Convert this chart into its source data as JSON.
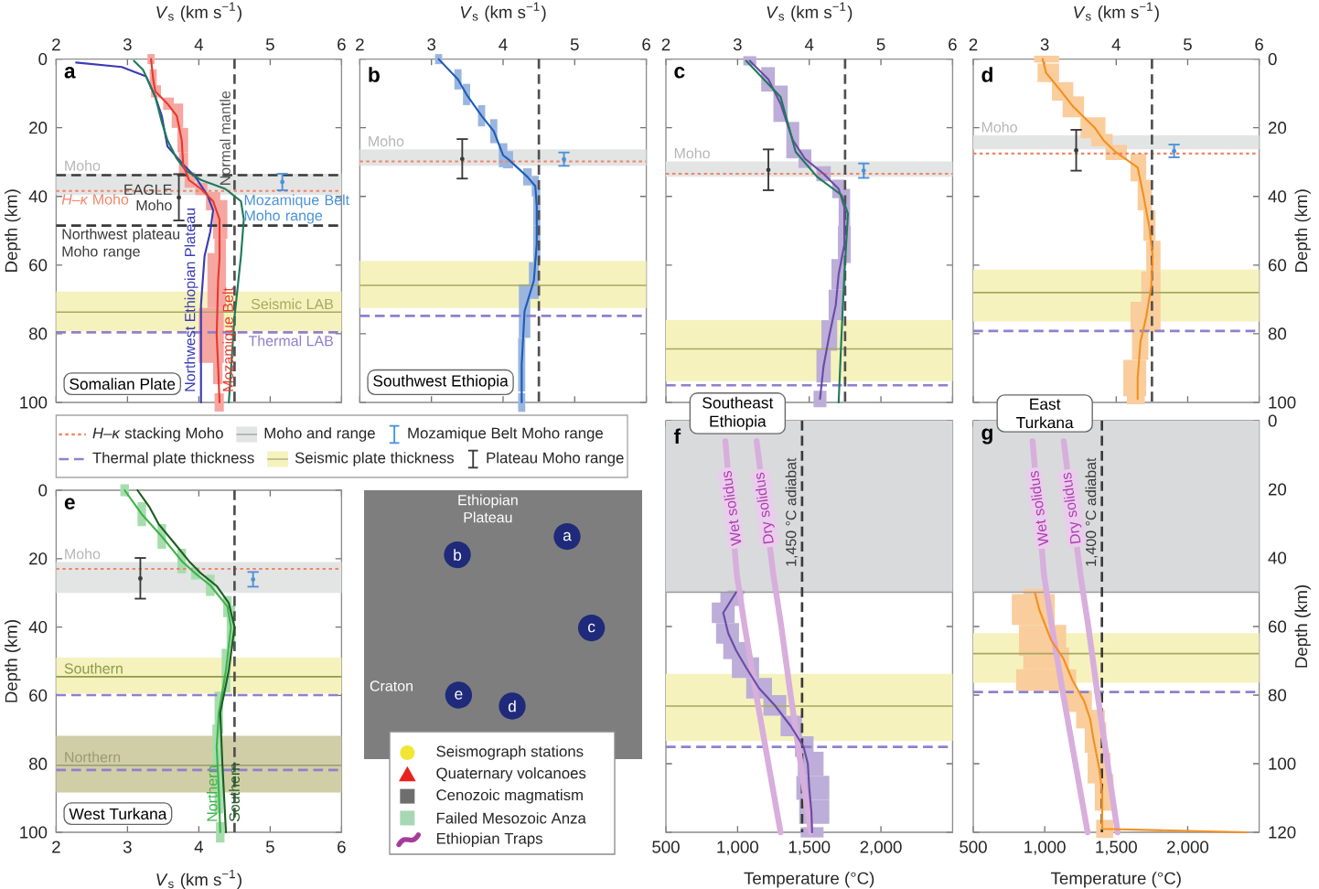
{
  "chart_data": [
    {
      "type": "line",
      "title": "a",
      "subtitle": "Somalian Plate",
      "xlabel": "*V*$_{s}$ (km s$^{−1}$)",
      "ylabel": "Depth (km)",
      "xlim": [
        2,
        6
      ],
      "ylim": [
        100,
        0
      ],
      "xticks": [
        2,
        3,
        4,
        5,
        6
      ],
      "yticks": [
        0,
        20,
        40,
        60,
        80,
        100
      ],
      "marker": "none",
      "bands": [
        {
          "axis": "y",
          "from": 33.4,
          "to": 39.6,
          "color": "#e3e4e4",
          "label": "Moho"
        },
        {
          "axis": "y",
          "from": 67.7,
          "to": 79.2,
          "color": "#f5f2bd"
        }
      ],
      "ref_lines": [
        {
          "axis": "y",
          "value": 38.4,
          "color": "#f28466",
          "line_style": "dotted",
          "label": "*H*–*κ* Moho"
        },
        {
          "axis": "y",
          "value": 33.8,
          "color": "#3a3a3a",
          "line_style": "dashed"
        },
        {
          "axis": "y",
          "value": 48.5,
          "color": "#3a3a3a",
          "line_style": "dashed",
          "label": "Northwest plateau Moho range"
        },
        {
          "axis": "y",
          "value": 73.7,
          "color": "#a9a762",
          "line_style": "solid",
          "label": "Seismic LAB"
        },
        {
          "axis": "y",
          "value": 79.6,
          "color": "#9080cc",
          "line_style": "dashed",
          "label": "Thermal LAB"
        },
        {
          "axis": "x",
          "value": 4.5,
          "color": "#505050",
          "line_style": "dashed",
          "label": "Normal mantle"
        }
      ],
      "annotations": [
        {
          "text": "EAGLE Moho",
          "x": 3.72,
          "y": 40.3
        },
        {
          "text": "Mozamique Belt Moho range",
          "x": 5.17,
          "y": 38.2
        }
      ],
      "series": [
        {
          "name": "Northwest Ethiopian Plateau",
          "color": "#3b3bb5",
          "x": [
            2.28,
            2.92,
            3.26,
            3.39,
            3.48,
            3.56,
            3.78,
            3.95,
            4.12,
            4.2,
            4.16,
            4.08,
            4.03,
            4.03
          ],
          "values": [
            1,
            2.3,
            5,
            11,
            16.5,
            25.4,
            30.7,
            34.3,
            39.6,
            44,
            50.3,
            57.4,
            71.6,
            100
          ]
        },
        {
          "color": "#1f7a5a",
          "x": [
            3.09,
            3.22,
            3.39,
            3.48,
            3.56,
            3.69,
            3.82,
            4.03,
            4.37,
            4.59,
            4.63,
            4.59,
            4.5,
            4.42
          ],
          "values": [
            0.5,
            3.2,
            11,
            18.3,
            23.6,
            29,
            32.5,
            35.2,
            37.8,
            41.4,
            46.7,
            57.4,
            75.1,
            100
          ]
        },
        {
          "name": "Mozamique Belt",
          "color": "#e8392e",
          "x": [
            3.33,
            3.36,
            3.39,
            3.56,
            3.69,
            3.76,
            3.78,
            3.86,
            4.03,
            4.2,
            4.29,
            4.29,
            4.27,
            4.25,
            4.27,
            4.29
          ],
          "values": [
            0,
            5.9,
            9.4,
            13,
            16.5,
            23.6,
            30.7,
            35.2,
            37.8,
            41.4,
            46.7,
            58,
            64.5,
            80.5,
            89.4,
            100
          ],
          "xerrors": [
            [
              3.28,
              3.38
            ],
            [
              3.31,
              3.41
            ],
            [
              3.33,
              3.47
            ],
            [
              3.5,
              3.65
            ],
            [
              3.62,
              3.78
            ],
            [
              3.7,
              3.85
            ],
            [
              3.72,
              3.85
            ],
            [
              3.8,
              3.95
            ],
            [
              3.95,
              4.12
            ],
            [
              4.1,
              4.3
            ],
            [
              4.2,
              4.4
            ],
            [
              4.22,
              4.38
            ],
            [
              4.12,
              4.38
            ],
            [
              4.0,
              4.35
            ],
            [
              4.2,
              4.33
            ],
            [
              4.22,
              4.35
            ]
          ]
        },
        {
          "type": "scatter",
          "marker": "circle",
          "color": "#3a3a3a",
          "x": [
            3.72
          ],
          "values": [
            40.3
          ],
          "errors": [
            [
              33.5,
              47
            ]
          ]
        },
        {
          "type": "scatter",
          "marker": "circle",
          "color": "#4a92d8",
          "x": [
            5.17
          ],
          "values": [
            35.8
          ],
          "errors": [
            [
              33.4,
              38.2
            ]
          ]
        }
      ]
    },
    {
      "type": "line",
      "title": "b",
      "subtitle": "Southwest Ethiopia",
      "xlabel": "*V*$_{s}$ (km s$^{−1}$)",
      "xlim": [
        2,
        6
      ],
      "ylim": [
        100,
        0
      ],
      "xticks": [
        2,
        3,
        4,
        5,
        6
      ],
      "yticks": [
        0,
        20,
        40,
        60,
        80,
        100
      ],
      "tick_labels": "x",
      "marker": "none",
      "bands": [
        {
          "axis": "y",
          "from": 26.3,
          "to": 31.1,
          "color": "#e3e4e4",
          "label": "Moho"
        },
        {
          "axis": "y",
          "from": 58.8,
          "to": 72.5,
          "color": "#f5f2bd"
        }
      ],
      "ref_lines": [
        {
          "axis": "y",
          "value": 29.8,
          "color": "#f28466",
          "line_style": "dotted"
        },
        {
          "axis": "y",
          "value": 65.9,
          "color": "#a9a762",
          "line_style": "solid"
        },
        {
          "axis": "y",
          "value": 74.8,
          "color": "#9080cc",
          "line_style": "dashed"
        },
        {
          "axis": "x",
          "value": 4.5,
          "color": "#505050",
          "line_style": "dashed"
        }
      ],
      "series": [
        {
          "color": "#1e5db8",
          "x": [
            3.1,
            3.37,
            3.49,
            3.7,
            3.87,
            4.0,
            4.08,
            4.34,
            4.45,
            4.47,
            4.47,
            4.43,
            4.3,
            4.26,
            4.26
          ],
          "values": [
            0,
            5.9,
            10.3,
            16.5,
            21,
            28,
            29.3,
            34.3,
            37,
            43,
            53.8,
            64.5,
            73.4,
            89,
            100
          ],
          "xerrors": [
            [
              3.05,
              3.15
            ],
            [
              3.32,
              3.42
            ],
            [
              3.44,
              3.54
            ],
            [
              3.65,
              3.75
            ],
            [
              3.82,
              3.92
            ],
            [
              3.94,
              4.06
            ],
            [
              4.0,
              4.14
            ],
            [
              4.28,
              4.4
            ],
            [
              4.4,
              4.5
            ],
            [
              4.42,
              4.52
            ],
            [
              4.42,
              4.52
            ],
            [
              4.36,
              4.5
            ],
            [
              4.22,
              4.38
            ],
            [
              4.21,
              4.31
            ],
            [
              4.21,
              4.31
            ]
          ]
        },
        {
          "type": "scatter",
          "marker": "circle",
          "color": "#3a3a3a",
          "x": [
            3.43
          ],
          "values": [
            29.1
          ],
          "errors": [
            [
              23.3,
              34.8
            ]
          ]
        },
        {
          "type": "scatter",
          "marker": "circle",
          "color": "#4a92d8",
          "x": [
            4.85
          ],
          "values": [
            29.2
          ],
          "errors": [
            [
              27.2,
              31.1
            ]
          ]
        }
      ]
    },
    {
      "type": "line",
      "title": "c",
      "xlabel": "*V*$_{s}$ (km s$^{−1}$)",
      "xlim": [
        2,
        6
      ],
      "ylim": [
        100,
        0
      ],
      "xticks": [
        2,
        3,
        4,
        5,
        6
      ],
      "yticks": [
        0,
        20,
        40,
        60,
        80,
        100
      ],
      "tick_labels": "x",
      "marker": "none",
      "bands": [
        {
          "axis": "y",
          "from": 29.8,
          "to": 34.3,
          "color": "#e3e4e4",
          "label": "Moho"
        },
        {
          "axis": "y",
          "from": 76,
          "to": 93.8,
          "color": "#f5f2bd"
        }
      ],
      "ref_lines": [
        {
          "axis": "y",
          "value": 33.4,
          "color": "#f28466",
          "line_style": "dotted"
        },
        {
          "axis": "y",
          "value": 84.4,
          "color": "#a9a762",
          "line_style": "solid"
        },
        {
          "axis": "y",
          "value": 95,
          "color": "#9080cc",
          "line_style": "dashed"
        },
        {
          "axis": "x",
          "value": 4.5,
          "color": "#505050",
          "line_style": "dashed"
        }
      ],
      "series": [
        {
          "color": "#6b4ba8",
          "x": [
            3.17,
            3.43,
            3.6,
            3.77,
            3.94,
            4.2,
            4.41,
            4.49,
            4.49,
            4.41,
            4.37,
            4.28,
            4.2,
            4.15
          ],
          "values": [
            0.5,
            5.9,
            13,
            23.6,
            29,
            33.4,
            37.8,
            43.2,
            54,
            62.7,
            71.6,
            80.5,
            89.4,
            99
          ],
          "xerrors": [
            [
              3.08,
              3.26
            ],
            [
              3.33,
              3.52
            ],
            [
              3.5,
              3.7
            ],
            [
              3.68,
              3.86
            ],
            [
              3.85,
              4.03
            ],
            [
              4.1,
              4.3
            ],
            [
              4.32,
              4.5
            ],
            [
              4.41,
              4.57
            ],
            [
              4.4,
              4.58
            ],
            [
              4.31,
              4.51
            ],
            [
              4.27,
              4.47
            ],
            [
              4.17,
              4.39
            ],
            [
              4.1,
              4.3
            ],
            [
              4.06,
              4.24
            ]
          ]
        },
        {
          "color": "#1f7a5a",
          "x": [
            3.12,
            3.6,
            3.81,
            4.11,
            4.45,
            4.54,
            4.49,
            4.45,
            4.41
          ],
          "values": [
            0.5,
            11,
            27,
            34.3,
            39.6,
            45,
            62.7,
            80.5,
            100
          ]
        },
        {
          "type": "scatter",
          "marker": "circle",
          "color": "#3a3a3a",
          "x": [
            3.43
          ],
          "values": [
            32.3
          ],
          "errors": [
            [
              26.3,
              38.2
            ]
          ]
        },
        {
          "type": "scatter",
          "marker": "circle",
          "color": "#4a92d8",
          "x": [
            4.76
          ],
          "values": [
            32.5
          ],
          "errors": [
            [
              30.4,
              34.6
            ]
          ]
        }
      ]
    },
    {
      "type": "line",
      "title": "d",
      "xlabel": "*V*$_{s}$ (km s$^{−1}$)",
      "ylabel": "Depth (km)",
      "xlim": [
        2,
        6
      ],
      "ylim": [
        100,
        0
      ],
      "xticks": [
        2,
        3,
        4,
        5,
        6
      ],
      "yticks": [
        0,
        20,
        40,
        60,
        80,
        100
      ],
      "marker": "none",
      "bands": [
        {
          "axis": "y",
          "from": 22.2,
          "to": 26.3,
          "color": "#e3e4e4",
          "label": "Moho"
        },
        {
          "axis": "y",
          "from": 61.3,
          "to": 76.4,
          "color": "#f5f2bd"
        }
      ],
      "ref_lines": [
        {
          "axis": "y",
          "value": 27.5,
          "color": "#f28466",
          "line_style": "dotted"
        },
        {
          "axis": "y",
          "value": 68,
          "color": "#a9a762",
          "line_style": "solid"
        },
        {
          "axis": "y",
          "value": 79.2,
          "color": "#9080cc",
          "line_style": "dashed"
        },
        {
          "axis": "x",
          "value": 4.5,
          "color": "#505050",
          "line_style": "dashed"
        }
      ],
      "series": [
        {
          "color": "#f39022",
          "x": [
            2.97,
            3.02,
            3.23,
            3.4,
            3.7,
            3.82,
            4.0,
            4.3,
            4.38,
            4.46,
            4.51,
            4.49,
            4.42,
            4.34,
            4.3,
            4.3
          ],
          "values": [
            0,
            4,
            9.4,
            13.9,
            20,
            23.6,
            27.2,
            31.6,
            39.6,
            48.5,
            57.4,
            66.3,
            75.1,
            82.3,
            92.9,
            99
          ],
          "xerrors": [
            [
              2.85,
              3.2
            ],
            [
              2.9,
              3.2
            ],
            [
              3.1,
              3.4
            ],
            [
              3.25,
              3.55
            ],
            [
              3.5,
              3.85
            ],
            [
              3.65,
              3.95
            ],
            [
              3.85,
              4.15
            ],
            [
              4.2,
              4.42
            ],
            [
              4.3,
              4.5
            ],
            [
              4.38,
              4.55
            ],
            [
              4.42,
              4.62
            ],
            [
              4.35,
              4.62
            ],
            [
              4.2,
              4.62
            ],
            [
              4.22,
              4.45
            ],
            [
              4.1,
              4.42
            ],
            [
              4.15,
              4.4
            ]
          ]
        },
        {
          "type": "scatter",
          "marker": "circle",
          "color": "#3a3a3a",
          "x": [
            3.44
          ],
          "values": [
            26.6
          ],
          "errors": [
            [
              20.6,
              32.5
            ]
          ]
        },
        {
          "type": "scatter",
          "marker": "circle",
          "color": "#4a92d8",
          "x": [
            4.81
          ],
          "values": [
            26.8
          ],
          "errors": [
            [
              24.9,
              28.6
            ]
          ]
        }
      ]
    },
    {
      "type": "other",
      "series": [
        {
          "name": "*H*–*κ* stacking Moho",
          "color": "#f28466",
          "type": "line",
          "line_style": "dotted"
        },
        {
          "name": "Moho and range",
          "color": "#e3e4e4",
          "type": "area"
        },
        {
          "name": "Mozamique Belt Moho range",
          "color": "#4a92d8",
          "type": "scatter"
        },
        {
          "name": "Thermal plate thickness",
          "color": "#9080cc",
          "type": "line",
          "line_style": "dashed"
        },
        {
          "name": "Seismic plate thickness",
          "color": "#f5f2bd",
          "type": "area"
        },
        {
          "name": "Plateau Moho range",
          "color": "#3a3a3a",
          "type": "scatter"
        }
      ]
    },
    {
      "type": "line",
      "title": "e",
      "subtitle": "West Turkana",
      "xlabel": "*V*$_{s}$ (km s$^{−1}$)",
      "ylabel": "Depth (km)",
      "xlim": [
        2,
        6
      ],
      "ylim": [
        100,
        0
      ],
      "xticks": [
        2,
        3,
        4,
        5,
        6
      ],
      "yticks": [
        0,
        20,
        40,
        60,
        80,
        100
      ],
      "marker": "none",
      "bands": [
        {
          "axis": "y",
          "from": 21,
          "to": 30,
          "color": "#e3e4e4",
          "label": "Moho"
        },
        {
          "axis": "y",
          "from": 48.9,
          "to": 59.4,
          "color": "#f5f2bd"
        },
        {
          "axis": "y",
          "from": 71.8,
          "to": 88.4,
          "color": "#d0cea6"
        }
      ],
      "ref_lines": [
        {
          "axis": "y",
          "value": 23,
          "color": "#f28466",
          "line_style": "dotted"
        },
        {
          "axis": "y",
          "value": 54.5,
          "color": "#8c9a4a",
          "line_style": "solid",
          "label": "Southern"
        },
        {
          "axis": "y",
          "value": 59.9,
          "color": "#9080cc",
          "line_style": "dashed"
        },
        {
          "axis": "y",
          "value": 80.4,
          "color": "#9c9a72",
          "line_style": "solid",
          "label": "Northern"
        },
        {
          "axis": "y",
          "value": 81.8,
          "color": "#9080cc",
          "line_style": "dashed"
        },
        {
          "axis": "x",
          "value": 4.5,
          "color": "#505050",
          "line_style": "dashed"
        }
      ],
      "series": [
        {
          "name": "Northern",
          "color": "#3cb44b",
          "x": [
            2.96,
            3.2,
            3.48,
            3.76,
            3.95,
            4.16,
            4.4,
            4.45,
            4.38,
            4.28,
            4.25,
            4.28,
            4.3
          ],
          "values": [
            0,
            7,
            13.5,
            20.7,
            24.3,
            27.8,
            34,
            40,
            52.7,
            65,
            75,
            88,
            100
          ],
          "xerrors": [
            [
              2.9,
              3.02
            ],
            [
              3.14,
              3.26
            ],
            [
              3.42,
              3.54
            ],
            [
              3.7,
              3.82
            ],
            [
              3.89,
              4.01
            ],
            [
              4.1,
              4.22
            ],
            [
              4.34,
              4.46
            ],
            [
              4.39,
              4.51
            ],
            [
              4.32,
              4.44
            ],
            [
              4.22,
              4.34
            ],
            [
              4.19,
              4.31
            ],
            [
              4.22,
              4.34
            ],
            [
              4.24,
              4.36
            ]
          ]
        },
        {
          "name": "Southern",
          "color": "#1d5e22",
          "x": [
            3.14,
            3.31,
            3.44,
            3.69,
            3.86,
            4.03,
            4.25,
            4.42,
            4.5,
            4.42,
            4.3,
            4.33,
            4.38
          ],
          "values": [
            0,
            5,
            10,
            16.3,
            20.7,
            24.3,
            28,
            33,
            40,
            52.7,
            65,
            80,
            100
          ]
        },
        {
          "type": "scatter",
          "marker": "circle",
          "color": "#3a3a3a",
          "x": [
            3.18
          ],
          "values": [
            25.8
          ],
          "errors": [
            [
              19.8,
              31.7
            ]
          ]
        },
        {
          "type": "scatter",
          "marker": "circle",
          "color": "#4a92d8",
          "x": [
            4.76
          ],
          "values": [
            26.1
          ],
          "errors": [
            [
              23.9,
              28.2
            ]
          ]
        }
      ]
    },
    {
      "type": "other",
      "series": [
        {
          "name": "Seismograph stations",
          "color": "#f2e635",
          "marker": "circle"
        },
        {
          "name": "Quaternary volcanoes",
          "color": "#e8231e",
          "marker": "triangle"
        },
        {
          "name": "Cenozoic magmatism",
          "color": "#6e6e6e",
          "marker": "square"
        },
        {
          "name": "Failed Mesozoic Anza",
          "color": "#a7d7b4",
          "marker": "square"
        },
        {
          "name": "Ethiopian Traps",
          "color": "#a53c9c",
          "type": "line"
        }
      ],
      "annotations": [
        "Ethiopian Plateau",
        "Craton",
        "a",
        "b",
        "c",
        "d",
        "e"
      ]
    },
    {
      "type": "line",
      "title": "f",
      "subtitle": "Southeast Ethiopia",
      "xlabel": "Temperature (°C)",
      "xlim": [
        500,
        2500
      ],
      "ylim": [
        120,
        0
      ],
      "xticks": [
        500,
        {
          "value": 1000,
          "label": "1,000"
        },
        {
          "value": 1500,
          "label": "1,500"
        },
        {
          "value": 2000,
          "label": "2,000"
        }
      ],
      "yticks": [
        0,
        20,
        40,
        60,
        80,
        100,
        120
      ],
      "tick_labels": "x",
      "marker": "none",
      "bands": [
        {
          "axis": "y",
          "from": 0,
          "to": 50,
          "color": "#d9dadc"
        },
        {
          "axis": "y",
          "from": 73.8,
          "to": 93.3,
          "color": "#f5f2bd"
        }
      ],
      "ref_lines": [
        {
          "axis": "y",
          "value": 50,
          "color": "#9b9b9b",
          "line_style": "solid"
        },
        {
          "axis": "y",
          "value": 83.2,
          "color": "#a9a762",
          "line_style": "solid"
        },
        {
          "axis": "y",
          "value": 95.1,
          "color": "#9080cc",
          "line_style": "dashed"
        },
        {
          "axis": "x",
          "value": 1450,
          "color": "#3a3a3a",
          "line_style": "dashed",
          "label": "1,450 °C adiabat"
        }
      ],
      "series": [
        {
          "name": "Wet solidus",
          "color": "#d8aedc",
          "x": [
            915,
            995,
            1050,
            1130,
            1215,
            1300
          ],
          "values": [
            6,
            45,
            60,
            80,
            100,
            120
          ]
        },
        {
          "name": "Dry solidus",
          "color": "#d8aedc",
          "x": [
            1133,
            1250,
            1305,
            1370,
            1440,
            1510
          ],
          "values": [
            6,
            45,
            60,
            80,
            100,
            120
          ]
        },
        {
          "color": "#6b4ba8",
          "x": [
            990,
            960,
            900,
            935,
            990,
            1060,
            1150,
            1260,
            1370,
            1460,
            1490,
            1500,
            1515,
            1520
          ],
          "values": [
            50,
            52,
            56,
            62,
            67,
            72,
            78,
            83,
            89,
            95,
            100,
            107,
            114,
            120
          ],
          "xerrors": [
            [
              930,
              1050
            ],
            [
              880,
              1040
            ],
            [
              820,
              980
            ],
            [
              850,
              1010
            ],
            [
              900,
              1080
            ],
            [
              960,
              1150
            ],
            [
              1060,
              1240
            ],
            [
              1180,
              1340
            ],
            [
              1300,
              1450
            ],
            [
              1400,
              1530
            ],
            [
              1420,
              1600
            ],
            [
              1410,
              1640
            ],
            [
              1430,
              1640
            ],
            [
              1440,
              1600
            ]
          ]
        }
      ]
    },
    {
      "type": "line",
      "title": "g",
      "subtitle": "East Turkana",
      "xlabel": "Temperature (°C)",
      "ylabel": "Depth (km)",
      "xlim": [
        500,
        2500
      ],
      "ylim": [
        120,
        0
      ],
      "xticks": [
        500,
        {
          "value": 1000,
          "label": "1,000"
        },
        {
          "value": 1500,
          "label": "1,500"
        },
        {
          "value": 2000,
          "label": "2,000"
        }
      ],
      "yticks": [
        0,
        20,
        40,
        60,
        80,
        100,
        120
      ],
      "marker": "none",
      "bands": [
        {
          "axis": "y",
          "from": 0,
          "to": 50,
          "color": "#d9dadc"
        },
        {
          "axis": "y",
          "from": 61.9,
          "to": 76.4,
          "color": "#f5f2bd"
        }
      ],
      "ref_lines": [
        {
          "axis": "y",
          "value": 50,
          "color": "#9b9b9b",
          "line_style": "solid"
        },
        {
          "axis": "y",
          "value": 67.9,
          "color": "#a9a762",
          "line_style": "solid"
        },
        {
          "axis": "y",
          "value": 79.1,
          "color": "#9080cc",
          "line_style": "dashed"
        },
        {
          "axis": "x",
          "value": 1400,
          "color": "#3a3a3a",
          "line_style": "dashed",
          "label": "1,400 °C adiabat"
        }
      ],
      "series": [
        {
          "name": "Wet solidus",
          "color": "#d8aedc",
          "x": [
            915,
            995,
            1050,
            1130,
            1215,
            1300
          ],
          "values": [
            6,
            45,
            60,
            80,
            100,
            120
          ]
        },
        {
          "name": "Dry solidus",
          "color": "#d8aedc",
          "x": [
            1133,
            1250,
            1305,
            1370,
            1440,
            1510
          ],
          "values": [
            6,
            45,
            60,
            80,
            100,
            120
          ]
        },
        {
          "color": "#f39022",
          "x": [
            932,
            961,
            1045,
            1130,
            1193,
            1276,
            1318,
            1339,
            1381,
            1402,
            1402,
            2410
          ],
          "values": [
            50.2,
            55,
            64,
            69.3,
            75.6,
            81.8,
            87,
            92.4,
            101.3,
            108.4,
            119,
            120
          ],
          "xerrors": [
            [
              850,
              1000
            ],
            [
              770,
              1070
            ],
            [
              820,
              1150
            ],
            [
              850,
              1170
            ],
            [
              800,
              1220
            ],
            [
              1150,
              1330
            ],
            [
              1220,
              1420
            ],
            [
              1280,
              1430
            ],
            [
              1300,
              1460
            ],
            [
              1350,
              1480
            ],
            [
              1360,
              1480
            ],
            null
          ]
        }
      ]
    }
  ]
}
